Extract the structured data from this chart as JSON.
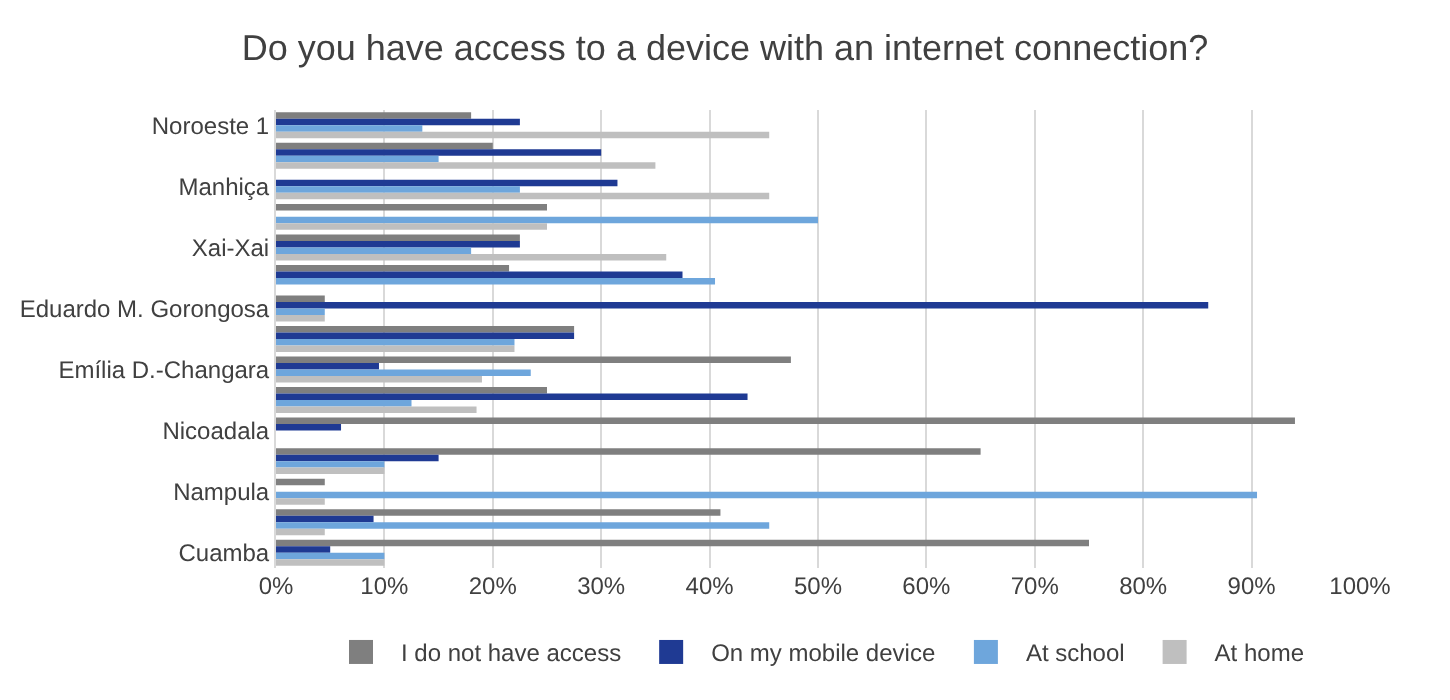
{
  "chart_data": {
    "type": "bar",
    "orientation": "horizontal",
    "title": "Do you have access to a device with an internet connection?",
    "categories": [
      "Noroeste 1",
      null,
      "Manhiça",
      null,
      "Xai-Xai",
      null,
      "Eduardo M. Gorongosa",
      null,
      "Emília D.-Changara",
      null,
      "Nicoadala",
      null,
      "Nampula",
      null,
      "Cuamba"
    ],
    "series": [
      {
        "name": "I do not have access",
        "color": "#7f7f7f",
        "values": [
          18,
          20,
          null,
          25,
          22.5,
          21.5,
          4.5,
          27.5,
          47.5,
          25,
          94,
          65,
          4.5,
          41,
          75
        ]
      },
      {
        "name": "On my mobile device",
        "color": "#1f3a93",
        "values": [
          22.5,
          30,
          31.5,
          null,
          22.5,
          37.5,
          86,
          27.5,
          9.5,
          43.5,
          6,
          15,
          null,
          9,
          5
        ]
      },
      {
        "name": "At school",
        "color": "#6ea6dc",
        "values": [
          13.5,
          15,
          22.5,
          50,
          18,
          40.5,
          4.5,
          22,
          23.5,
          12.5,
          null,
          10,
          90.5,
          45.5,
          10
        ]
      },
      {
        "name": "At home",
        "color": "#bfbfbf",
        "values": [
          45.5,
          35,
          45.5,
          25,
          36,
          null,
          4.5,
          22,
          19,
          18.5,
          null,
          10,
          4.5,
          4.5,
          10
        ]
      }
    ],
    "xlim": [
      0,
      100
    ],
    "xticks": [
      {
        "value": 0,
        "label": "0%"
      },
      {
        "value": 10,
        "label": "10%"
      },
      {
        "value": 20,
        "label": "20%"
      },
      {
        "value": 30,
        "label": "30%"
      },
      {
        "value": 40,
        "label": "40%"
      },
      {
        "value": 50,
        "label": "50%"
      },
      {
        "value": 60,
        "label": "60%"
      },
      {
        "value": 70,
        "label": "70%"
      },
      {
        "value": 80,
        "label": "80%"
      },
      {
        "value": 90,
        "label": "90%"
      },
      {
        "value": 100,
        "label": "100%"
      }
    ],
    "grid": "x",
    "legend": "bottom"
  }
}
